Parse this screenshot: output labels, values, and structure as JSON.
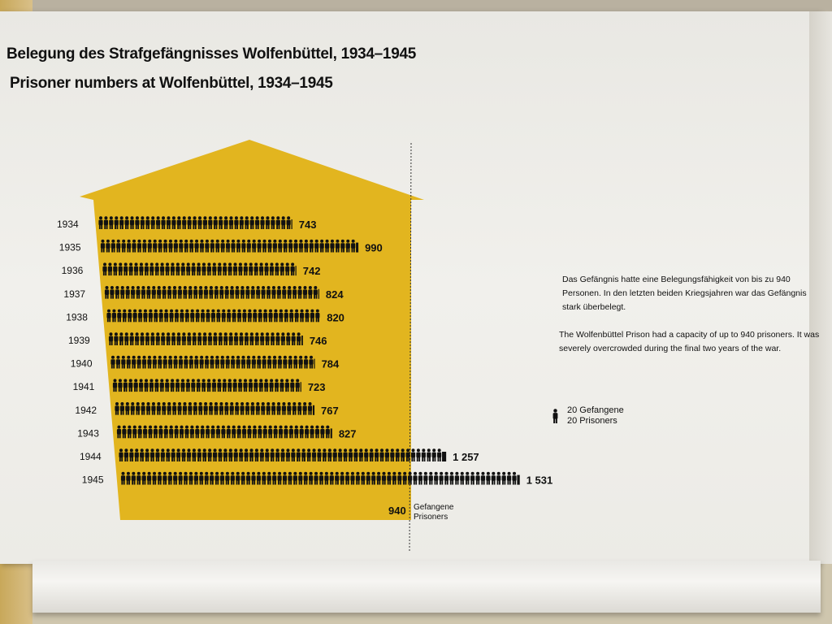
{
  "title_de": "Belegung des Strafgefängnisses Wolfenbüttel, 1934–1945",
  "title_en": "Prisoner numbers at Wolfenbüttel, 1934–1945",
  "description_de": "Das Gefängnis hatte eine Belegungsfähigkeit von bis zu 940 Personen. In den letzten beiden Kriegsjahren war das Gefängnis stark überbelegt.",
  "description_en": "The Wolfenbüttel Prison had a capacity of up to 940 prisoners. It was severely overcrowded during the final two years of the war.",
  "legend": {
    "line1": "20 Gefangene",
    "line2": "20 Prisoners",
    "icon": "person-icon"
  },
  "capacity": {
    "value_label": "940",
    "line1": "Gefangene",
    "line2": "Prisoners"
  },
  "colors": {
    "house": "#e2b51f",
    "figure": "#111111"
  },
  "chart_data": {
    "type": "bar",
    "orientation": "horizontal",
    "unit_per_icon": 20,
    "capacity": 940,
    "categories": [
      "1934",
      "1935",
      "1936",
      "1937",
      "1938",
      "1939",
      "1940",
      "1941",
      "1942",
      "1943",
      "1944",
      "1945"
    ],
    "values": [
      743,
      990,
      742,
      824,
      820,
      746,
      784,
      723,
      767,
      827,
      1257,
      1531
    ],
    "value_labels": [
      "743",
      "990",
      "742",
      "824",
      "820",
      "746",
      "784",
      "723",
      "767",
      "827",
      "1 257",
      "1 531"
    ]
  }
}
